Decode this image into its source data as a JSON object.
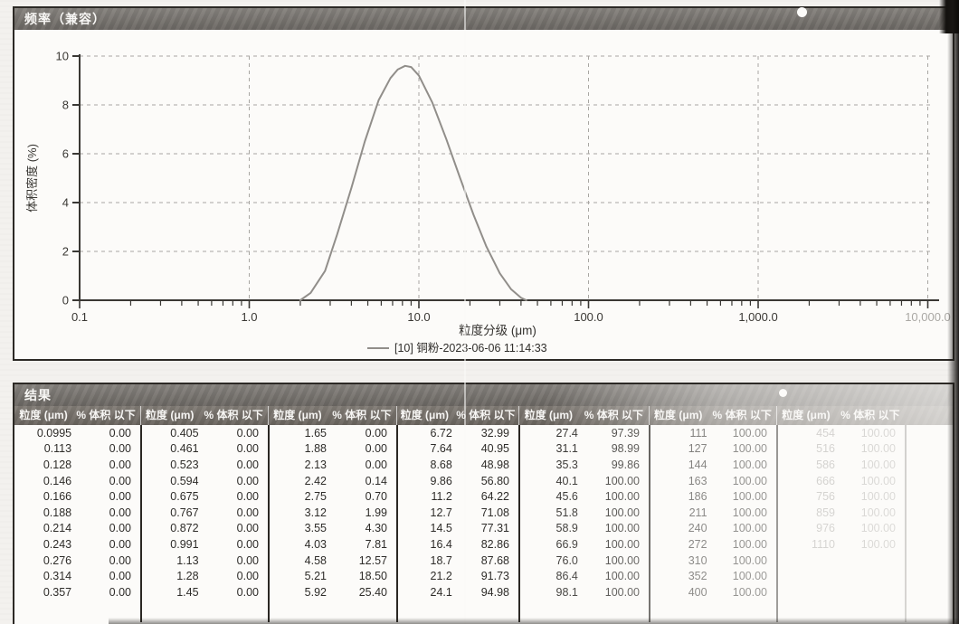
{
  "chart_panel": {
    "title": "频率（兼容）",
    "chart_data": {
      "type": "line",
      "title": "",
      "xlabel": "粒度分级 (μm)",
      "ylabel": "体积密度 (%)",
      "x_scale": "log",
      "xlim": [
        0.1,
        10000
      ],
      "ylim": [
        0,
        10
      ],
      "x_ticks": [
        "0.1",
        "1.0",
        "10.0",
        "100.0",
        "1,000.0",
        "10,000.0"
      ],
      "y_ticks": [
        "0",
        "2",
        "4",
        "6",
        "8",
        "10"
      ],
      "grid": "dashed",
      "legend_position": "bottom-center",
      "series": [
        {
          "name": "[10] 铜粉-2023-06-06 11:14:33",
          "color": "#918e8a",
          "points_um_pct": [
            [
              2.0,
              0
            ],
            [
              2.3,
              0.3
            ],
            [
              2.8,
              1.2
            ],
            [
              3.3,
              2.7
            ],
            [
              4.0,
              4.6
            ],
            [
              4.8,
              6.5
            ],
            [
              5.8,
              8.2
            ],
            [
              6.8,
              9.1
            ],
            [
              7.5,
              9.45
            ],
            [
              8.3,
              9.6
            ],
            [
              9.0,
              9.55
            ],
            [
              10,
              9.2
            ],
            [
              12,
              8.1
            ],
            [
              14.5,
              6.6
            ],
            [
              17.5,
              5.0
            ],
            [
              21,
              3.5
            ],
            [
              25,
              2.2
            ],
            [
              30,
              1.1
            ],
            [
              35,
              0.45
            ],
            [
              40,
              0.1
            ],
            [
              43,
              0
            ]
          ]
        }
      ]
    }
  },
  "results_panel": {
    "title": "结果",
    "column_headers": {
      "size": "粒度 (μm)",
      "pct": "% 体积 以下"
    },
    "groups": [
      {
        "faded": false,
        "rows": [
          [
            "0.0995",
            "0.00"
          ],
          [
            "0.113",
            "0.00"
          ],
          [
            "0.128",
            "0.00"
          ],
          [
            "0.146",
            "0.00"
          ],
          [
            "0.166",
            "0.00"
          ],
          [
            "0.188",
            "0.00"
          ],
          [
            "0.214",
            "0.00"
          ],
          [
            "0.243",
            "0.00"
          ],
          [
            "0.276",
            "0.00"
          ],
          [
            "0.314",
            "0.00"
          ],
          [
            "0.357",
            "0.00"
          ]
        ]
      },
      {
        "faded": false,
        "rows": [
          [
            "0.405",
            "0.00"
          ],
          [
            "0.461",
            "0.00"
          ],
          [
            "0.523",
            "0.00"
          ],
          [
            "0.594",
            "0.00"
          ],
          [
            "0.675",
            "0.00"
          ],
          [
            "0.767",
            "0.00"
          ],
          [
            "0.872",
            "0.00"
          ],
          [
            "0.991",
            "0.00"
          ],
          [
            "1.13",
            "0.00"
          ],
          [
            "1.28",
            "0.00"
          ],
          [
            "1.45",
            "0.00"
          ]
        ]
      },
      {
        "faded": false,
        "rows": [
          [
            "1.65",
            "0.00"
          ],
          [
            "1.88",
            "0.00"
          ],
          [
            "2.13",
            "0.00"
          ],
          [
            "2.42",
            "0.14"
          ],
          [
            "2.75",
            "0.70"
          ],
          [
            "3.12",
            "1.99"
          ],
          [
            "3.55",
            "4.30"
          ],
          [
            "4.03",
            "7.81"
          ],
          [
            "4.58",
            "12.57"
          ],
          [
            "5.21",
            "18.50"
          ],
          [
            "5.92",
            "25.40"
          ]
        ]
      },
      {
        "faded": false,
        "rows": [
          [
            "6.72",
            "32.99"
          ],
          [
            "7.64",
            "40.95"
          ],
          [
            "8.68",
            "48.98"
          ],
          [
            "9.86",
            "56.80"
          ],
          [
            "11.2",
            "64.22"
          ],
          [
            "12.7",
            "71.08"
          ],
          [
            "14.5",
            "77.31"
          ],
          [
            "16.4",
            "82.86"
          ],
          [
            "18.7",
            "87.68"
          ],
          [
            "21.2",
            "91.73"
          ],
          [
            "24.1",
            "94.98"
          ]
        ]
      },
      {
        "faded": false,
        "rows": [
          [
            "27.4",
            "97.39"
          ],
          [
            "31.1",
            "98.99"
          ],
          [
            "35.3",
            "99.86"
          ],
          [
            "40.1",
            "100.00"
          ],
          [
            "45.6",
            "100.00"
          ],
          [
            "51.8",
            "100.00"
          ],
          [
            "58.9",
            "100.00"
          ],
          [
            "66.9",
            "100.00"
          ],
          [
            "76.0",
            "100.00"
          ],
          [
            "86.4",
            "100.00"
          ],
          [
            "98.1",
            "100.00"
          ]
        ]
      },
      {
        "faded": false,
        "rows": [
          [
            "111",
            "100.00"
          ],
          [
            "127",
            "100.00"
          ],
          [
            "144",
            "100.00"
          ],
          [
            "163",
            "100.00"
          ],
          [
            "186",
            "100.00"
          ],
          [
            "211",
            "100.00"
          ],
          [
            "240",
            "100.00"
          ],
          [
            "272",
            "100.00"
          ],
          [
            "310",
            "100.00"
          ],
          [
            "352",
            "100.00"
          ],
          [
            "400",
            "100.00"
          ]
        ]
      },
      {
        "faded": true,
        "rows": [
          [
            "454",
            "100.00"
          ],
          [
            "516",
            "100.00"
          ],
          [
            "586",
            "100.00"
          ],
          [
            "666",
            "100.00"
          ],
          [
            "756",
            "100.00"
          ],
          [
            "859",
            "100.00"
          ],
          [
            "976",
            "100.00"
          ],
          [
            "1110",
            "100.00"
          ]
        ]
      }
    ]
  },
  "colors": {
    "panel_bg": "#fcfbf9",
    "bar_bg": "#77736e",
    "curve": "#918e8a",
    "grid": "#a8a6a2",
    "axis": "#3a3834",
    "faded_text": "#9d9b97"
  }
}
